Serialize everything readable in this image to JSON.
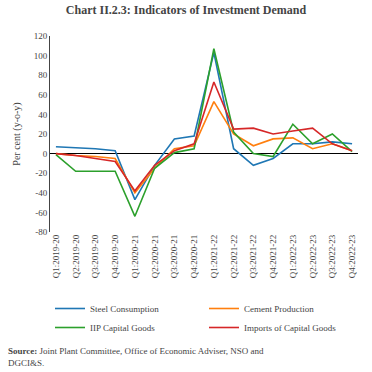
{
  "chart_data": {
    "type": "line",
    "title": "Chart II.2.3: Indicators of Investment Demand",
    "ylabel": "Per cent (y-o-y)",
    "categories": [
      "Q1:2019-20",
      "Q2:2019-20",
      "Q3:2019-20",
      "Q4:2019-20",
      "Q1:2020-21",
      "Q2:2020-21",
      "Q3:2020-21",
      "Q4:2020-21",
      "Q1:2021-22",
      "Q2:2021-22",
      "Q3:2021-22",
      "Q4:2021-22",
      "Q1:2022-23",
      "Q2:2022-23",
      "Q3:2022-23",
      "Q4:2022-23"
    ],
    "series": [
      {
        "name": "Steel Consumption",
        "values": [
          7,
          6,
          5,
          3,
          -47,
          -12,
          15,
          18,
          103,
          5,
          -12,
          -5,
          10,
          10,
          12,
          10
        ]
      },
      {
        "name": "Cement Production",
        "values": [
          0,
          -2,
          -3,
          -5,
          -40,
          -15,
          5,
          8,
          53,
          20,
          8,
          15,
          16,
          5,
          10,
          3
        ]
      },
      {
        "name": "IIP Capital Goods",
        "values": [
          -1,
          -18,
          -18,
          -18,
          -64,
          -15,
          1,
          5,
          107,
          22,
          0,
          -3,
          30,
          10,
          20,
          2
        ]
      },
      {
        "name": "Imports of Capital Goods",
        "values": [
          0,
          -2,
          -5,
          -8,
          -38,
          -12,
          3,
          10,
          73,
          25,
          26,
          20,
          23,
          26,
          10,
          3
        ]
      }
    ],
    "ylim": [
      -80,
      120
    ],
    "yticks": [
      -80,
      -60,
      -40,
      -20,
      0,
      20,
      40,
      60,
      80,
      100,
      120
    ],
    "grid": false,
    "legend": "bottom",
    "annotations": [
      "Source:",
      "Joint Plant Committee, Office of Economic Adviser, NSO and",
      "DGCI&S."
    ]
  }
}
